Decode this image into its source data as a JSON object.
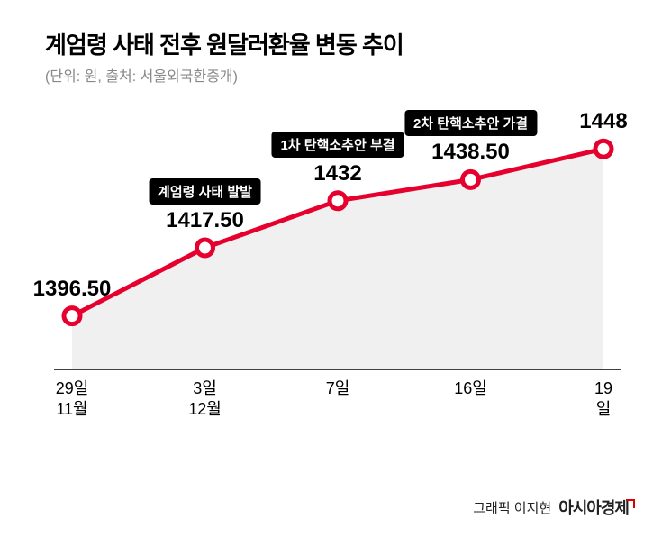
{
  "title": "계엄령 사태 전후 원달러환율 변동 추이",
  "subtitle": "(단위: 원, 출처: 서울외국환중개)",
  "credit_label": "그래픽 이지현",
  "brand": "아시아경제",
  "chart": {
    "type": "line-area",
    "line_color": "#e6002d",
    "line_width": 5,
    "area_fill": "#f0f0f0",
    "marker_fill": "#ffffff",
    "marker_stroke": "#e6002d",
    "marker_stroke_width": 5,
    "marker_radius": 9,
    "value_fontsize": 24,
    "value_fontweight": 900,
    "event_bg": "#000000",
    "event_color": "#ffffff",
    "event_fontsize": 15,
    "xlabel_fontsize": 18,
    "ylim_min": 1380,
    "ylim_max": 1455,
    "baseline_color": "#000000",
    "baseline_width": 1.5,
    "points": [
      {
        "date_day": "29일",
        "date_month": "11월",
        "value": 1396.5,
        "value_label": "1396.50",
        "event": ""
      },
      {
        "date_day": "3일",
        "date_month": "12월",
        "value": 1417.5,
        "value_label": "1417.50",
        "event": "계엄령 사태 발발"
      },
      {
        "date_day": "7일",
        "date_month": "",
        "value": 1432,
        "value_label": "1432",
        "event": "1차 탄핵소추안 부결"
      },
      {
        "date_day": "16일",
        "date_month": "",
        "value": 1438.5,
        "value_label": "1438.50",
        "event": "2차 탄핵소추안 가결"
      },
      {
        "date_day": "19일",
        "date_month": "",
        "value": 1448,
        "value_label": "1448",
        "event": ""
      }
    ]
  }
}
